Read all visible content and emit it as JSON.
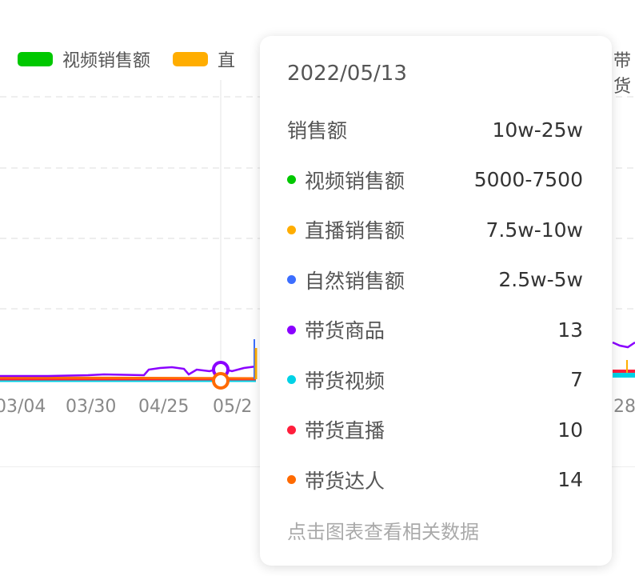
{
  "legend": [
    {
      "label": "视频销售额",
      "color": "#00c800"
    },
    {
      "label": "直",
      "color": "#ffad00"
    }
  ],
  "legend_right_partial": "带货",
  "chart_data": {
    "type": "line",
    "x_tick_labels": [
      "03/04",
      "03/30",
      "04/25",
      "05/2",
      "28"
    ],
    "grid": "horizontal dashed",
    "series_colors": {
      "带货商品": "#8a00ff",
      "带货达人": "#ff6a00",
      "带货直播": "#ff1e3c",
      "带货视频": "#00d2e6",
      "自然销售额": "#3c6eff",
      "直播销售额": "#ffad00"
    }
  },
  "tooltip": {
    "date": "2022/05/13",
    "rows": [
      {
        "label": "销售额",
        "value": "10w-25w",
        "color": ""
      },
      {
        "label": "视频销售额",
        "value": "5000-7500",
        "color": "#00c800"
      },
      {
        "label": "直播销售额",
        "value": "7.5w-10w",
        "color": "#ffad00"
      },
      {
        "label": "自然销售额",
        "value": "2.5w-5w",
        "color": "#3c6eff"
      },
      {
        "label": "带货商品",
        "value": "13",
        "color": "#8a00ff"
      },
      {
        "label": "带货视频",
        "value": "7",
        "color": "#00d2e6"
      },
      {
        "label": "带货直播",
        "value": "10",
        "color": "#ff1e3c"
      },
      {
        "label": "带货达人",
        "value": "14",
        "color": "#ff6a00"
      }
    ],
    "footer": "点击图表查看相关数据"
  }
}
